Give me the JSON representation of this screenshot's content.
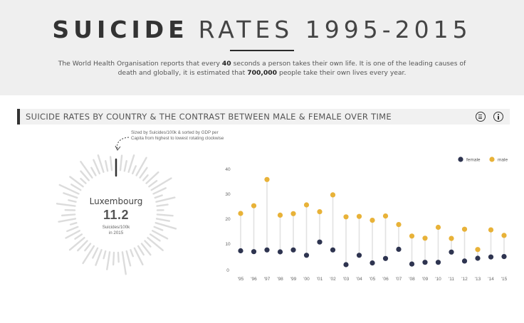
{
  "header": {
    "title_strong": "SUICIDE",
    "title_light": "RATES 1995-2015",
    "description_1": "The World Health Organisation reports that every ",
    "description_highlight_1": "40",
    "description_2": " seconds a person takes their own life. It is one of the leading causes of death and globally, it is estimated that ",
    "description_highlight_2": "700,000",
    "description_3": " people take their own lives every year."
  },
  "section": {
    "title": "SUICIDE RATES BY COUNTRY & THE CONTRAST BETWEEN MALE & FEMALE OVER TIME",
    "menu_icon": "menu-icon",
    "info_icon": "info-icon"
  },
  "radial": {
    "note": "Sized by Suicides/100k & sorted by GDP per Capita from highest to lowest rotating clockwise",
    "country": "Luxembourg",
    "value": "11.2",
    "unit_line1": "Suicides/100k",
    "unit_line2": "in 2015"
  },
  "chart_data": {
    "type": "scatter",
    "categories": [
      "'95",
      "'96",
      "'97",
      "'98",
      "'99",
      "'00",
      "'01",
      "'02",
      "'03",
      "'04",
      "'05",
      "'06",
      "'07",
      "'08",
      "'09",
      "'10",
      "'11",
      "'12",
      "'13",
      "'14",
      "'15"
    ],
    "series": [
      {
        "name": "female",
        "color": "#2e3450",
        "values": [
          8.5,
          8.1,
          8.9,
          8.0,
          8.9,
          6.4,
          12.6,
          8.9,
          2.0,
          6.4,
          2.8,
          4.9,
          9.2,
          2.3,
          3.1,
          3.1,
          7.9,
          3.7,
          5.0,
          5.6,
          5.8
        ]
      },
      {
        "name": "male",
        "color": "#e8b238",
        "values": [
          26.0,
          29.6,
          41.9,
          25.2,
          25.9,
          30.0,
          26.8,
          34.7,
          24.4,
          24.6,
          22.8,
          24.8,
          20.8,
          15.4,
          14.4,
          19.5,
          14.3,
          18.6,
          9.1,
          18.3,
          15.7
        ]
      }
    ],
    "yticks": [
      0,
      10,
      20,
      30,
      40
    ],
    "ylim": [
      0,
      44
    ],
    "legend": "top-right",
    "grid": false
  }
}
